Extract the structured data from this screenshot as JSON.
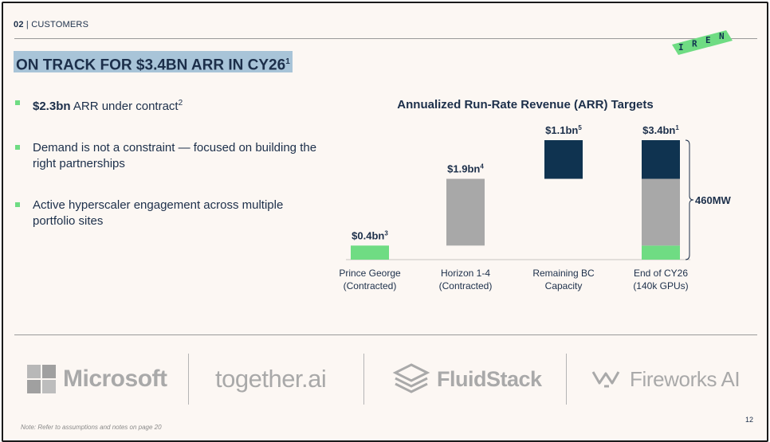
{
  "header": {
    "section_number": "02",
    "section_label": "| CUSTOMERS"
  },
  "logo": {
    "text": "IREN"
  },
  "headline": {
    "text": "ON TRACK FOR $3.4BN ARR IN CY26",
    "sup": "1"
  },
  "bullets": [
    {
      "bold": "$2.3bn",
      "text": " ARR under contract",
      "sup": "2"
    },
    {
      "bold": "",
      "text": "Demand is not a constraint — focused on building the right partnerships",
      "sup": ""
    },
    {
      "bold": "",
      "text": "Active hyperscaler engagement across multiple portfolio sites",
      "sup": ""
    }
  ],
  "colors": {
    "navy": "#0f3350",
    "grey": "#a8a8a8",
    "green": "#6fdc83",
    "highlight": "#a8c4d8",
    "text": "#1c2f4a"
  },
  "chart_data": {
    "type": "bar",
    "subtype": "waterfall",
    "title": "Annualized Run-Rate Revenue (ARR) Targets",
    "categories": [
      [
        "Prince George",
        "(Contracted)"
      ],
      [
        "Horizon 1-4",
        "(Contracted)"
      ],
      [
        "Remaining BC",
        "Capacity"
      ],
      [
        "End of CY26",
        "(140k GPUs)"
      ]
    ],
    "bars": [
      {
        "label": "$0.4bn",
        "sup": "3",
        "segments": [
          {
            "from": 0,
            "to": 0.4,
            "color": "green"
          }
        ]
      },
      {
        "label": "$1.9bn",
        "sup": "4",
        "segments": [
          {
            "from": 0.4,
            "to": 2.3,
            "color": "grey"
          }
        ]
      },
      {
        "label": "$1.1bn",
        "sup": "5",
        "segments": [
          {
            "from": 2.3,
            "to": 3.4,
            "color": "navy"
          }
        ]
      },
      {
        "label": "$3.4bn",
        "sup": "1",
        "segments": [
          {
            "from": 0,
            "to": 0.4,
            "color": "green"
          },
          {
            "from": 0.4,
            "to": 2.3,
            "color": "grey"
          },
          {
            "from": 2.3,
            "to": 3.4,
            "color": "navy"
          }
        ]
      }
    ],
    "annotation": {
      "text": "460MW",
      "applies_to": "End of CY26 (140k GPUs)"
    },
    "ylim": [
      0,
      3.4
    ]
  },
  "partners": [
    "Microsoft",
    "together.ai",
    "FluidStack",
    "Fireworks AI"
  ],
  "footnote": "Note: Refer to assumptions and notes on page 20",
  "page_number": "12"
}
